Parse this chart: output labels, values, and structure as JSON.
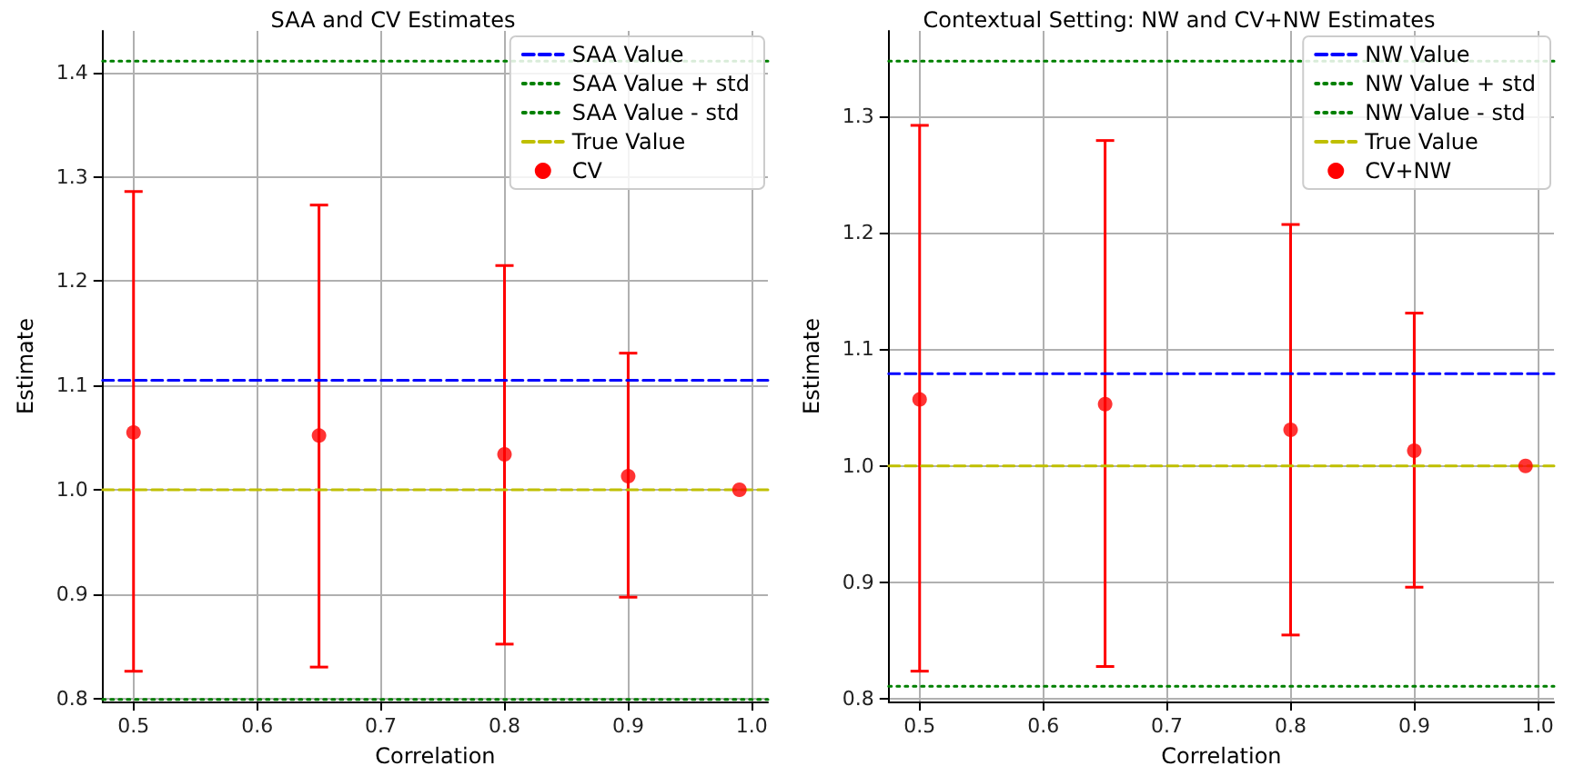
{
  "chart_data": [
    {
      "type": "scatter",
      "title": "SAA and CV Estimates",
      "xlabel": "Correlation",
      "ylabel": "Estimate",
      "x": [
        0.5,
        0.65,
        0.8,
        0.9,
        0.99
      ],
      "series": [
        {
          "name": "CV",
          "color": "#ff0000",
          "values": [
            1.055,
            1.052,
            1.034,
            1.013,
            1.0
          ],
          "errors": [
            [
              0.826,
              1.286
            ],
            [
              0.83,
              1.273
            ],
            [
              0.852,
              1.215
            ],
            [
              0.897,
              1.131
            ],
            null
          ]
        }
      ],
      "ref_lines": [
        {
          "axis": "y",
          "value": 1.105,
          "label": "SAA Value",
          "color": "#0000ff",
          "line_style": "dashed"
        },
        {
          "axis": "y",
          "value": 1.411,
          "label": "SAA Value + std",
          "color": "#008000",
          "line_style": "dotted"
        },
        {
          "axis": "y",
          "value": 0.799,
          "label": "SAA Value - std",
          "color": "#008000",
          "line_style": "dotted"
        },
        {
          "axis": "y",
          "value": 1.0,
          "label": "True Value",
          "color": "#bfbf00",
          "line_style": "dashed"
        }
      ],
      "xlim": [
        0.475,
        1.013
      ],
      "xticks": [
        0.5,
        0.6,
        0.7,
        0.8,
        0.9,
        {
          "value": 1,
          "label": "1.0"
        }
      ],
      "ylim": [
        0.797,
        1.44
      ],
      "yticks": [
        0.8,
        0.9,
        {
          "value": 1,
          "label": "1.0"
        },
        1.1,
        1.2,
        1.3,
        1.4
      ],
      "grid": true,
      "legend": "top right",
      "marker": "circle"
    },
    {
      "type": "scatter",
      "title": "Contextual Setting: NW and CV+NW Estimates",
      "xlabel": "Correlation",
      "ylabel": "Estimate",
      "x": [
        0.5,
        0.65,
        0.8,
        0.9,
        0.99
      ],
      "series": [
        {
          "name": "CV+NW",
          "color": "#ff0000",
          "values": [
            1.057,
            1.053,
            1.031,
            1.013,
            1.0
          ],
          "errors": [
            [
              0.824,
              1.292
            ],
            [
              0.828,
              1.279
            ],
            [
              0.855,
              1.207
            ],
            [
              0.896,
              1.131
            ],
            null
          ]
        }
      ],
      "ref_lines": [
        {
          "axis": "y",
          "value": 1.079,
          "label": "NW Value",
          "color": "#0000ff",
          "line_style": "dashed"
        },
        {
          "axis": "y",
          "value": 1.347,
          "label": "NW Value + std",
          "color": "#008000",
          "line_style": "dotted"
        },
        {
          "axis": "y",
          "value": 0.811,
          "label": "NW Value - std",
          "color": "#008000",
          "line_style": "dotted"
        },
        {
          "axis": "y",
          "value": 1.0,
          "label": "True Value",
          "color": "#bfbf00",
          "line_style": "dashed"
        }
      ],
      "xlim": [
        0.475,
        1.013
      ],
      "xticks": [
        0.5,
        0.6,
        0.7,
        0.8,
        0.9,
        {
          "value": 1,
          "label": "1.0"
        }
      ],
      "ylim": [
        0.798,
        1.373
      ],
      "yticks": [
        0.8,
        0.9,
        {
          "value": 1,
          "label": "1.0"
        },
        1.1,
        1.2,
        1.3
      ],
      "grid": true,
      "legend": "top right",
      "marker": "circle"
    }
  ]
}
